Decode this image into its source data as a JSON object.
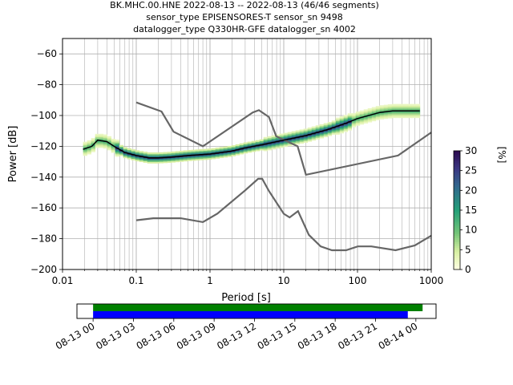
{
  "title_lines": [
    "BK.MHC.00.HNE   2022-08-13 -- 2022-08-13  (46/46 segments)",
    "sensor_type EPISENSORES-T sensor_sn 9498",
    "datalogger_type Q330HR-GFE datalogger_sn 4002"
  ],
  "chart_data": [
    {
      "type": "heatmap",
      "xlabel": "Period [s]",
      "ylabel": "Power [dB]",
      "x_scale": "log",
      "xlim": [
        0.01,
        1000
      ],
      "ylim": [
        -200,
        -50
      ],
      "grid": true,
      "x_ticks": [
        {
          "v": 0.01,
          "label": "0.01"
        },
        {
          "v": 0.1,
          "label": "0.1"
        },
        {
          "v": 1,
          "label": "1"
        },
        {
          "v": 10,
          "label": "10"
        },
        {
          "v": 100,
          "label": "100"
        },
        {
          "v": 1000,
          "label": "1000"
        }
      ],
      "y_ticks": [
        {
          "v": -60,
          "label": "−60"
        },
        {
          "v": -80,
          "label": "−80"
        },
        {
          "v": -100,
          "label": "−100"
        },
        {
          "v": -120,
          "label": "−120"
        },
        {
          "v": -140,
          "label": "−140"
        },
        {
          "v": -160,
          "label": "−160"
        },
        {
          "v": -180,
          "label": "−180"
        },
        {
          "v": -200,
          "label": "−200"
        }
      ],
      "mean_curve": [
        [
          0.019,
          -122
        ],
        [
          0.025,
          -120
        ],
        [
          0.03,
          -116
        ],
        [
          0.04,
          -117
        ],
        [
          0.05,
          -120
        ],
        [
          0.07,
          -124
        ],
        [
          0.1,
          -126
        ],
        [
          0.15,
          -127.5
        ],
        [
          0.2,
          -127.5
        ],
        [
          0.3,
          -127
        ],
        [
          0.5,
          -126
        ],
        [
          1,
          -125
        ],
        [
          2,
          -123
        ],
        [
          3,
          -121
        ],
        [
          5,
          -119
        ],
        [
          10,
          -116
        ],
        [
          20,
          -113
        ],
        [
          40,
          -109
        ],
        [
          70,
          -105
        ],
        [
          100,
          -102
        ],
        [
          200,
          -98
        ],
        [
          300,
          -97
        ],
        [
          500,
          -97
        ],
        [
          700,
          -97
        ]
      ],
      "nhnm": [
        [
          0.1,
          -91.5
        ],
        [
          0.22,
          -97.4
        ],
        [
          0.32,
          -110.5
        ],
        [
          0.8,
          -120
        ],
        [
          3.8,
          -98
        ],
        [
          4.6,
          -96.5
        ],
        [
          6.3,
          -101
        ],
        [
          7.9,
          -113.5
        ],
        [
          15.4,
          -120
        ],
        [
          20,
          -138.5
        ],
        [
          354.8,
          -126
        ],
        [
          1000,
          -111
        ]
      ],
      "nlnm": [
        [
          0.1,
          -168
        ],
        [
          0.17,
          -166.7
        ],
        [
          0.4,
          -166.7
        ],
        [
          0.8,
          -169.2
        ],
        [
          1.26,
          -163.7
        ],
        [
          3,
          -148.6
        ],
        [
          4.5,
          -141.1
        ],
        [
          5.1,
          -141.1
        ],
        [
          6.3,
          -149
        ],
        [
          10,
          -163.8
        ],
        [
          12,
          -166.2
        ],
        [
          15.6,
          -162.1
        ],
        [
          21.9,
          -177.5
        ],
        [
          31.6,
          -185
        ],
        [
          45,
          -187.5
        ],
        [
          70,
          -187.5
        ],
        [
          101,
          -185
        ],
        [
          154,
          -185
        ],
        [
          328,
          -187.5
        ],
        [
          600,
          -184.4
        ],
        [
          1000,
          -178
        ]
      ],
      "colorbar": {
        "label": "[%]",
        "range": [
          0,
          30
        ],
        "ticks": [
          0,
          5,
          10,
          15,
          20,
          25,
          30
        ]
      }
    },
    {
      "type": "timeline",
      "x_ticks": [
        "08-13 00",
        "08-13 03",
        "08-13 06",
        "08-13 09",
        "08-13 12",
        "08-13 15",
        "08-13 18",
        "08-13 21",
        "08-14 00"
      ],
      "xlim_hours": [
        -1.2,
        25.5
      ],
      "bars": [
        {
          "start": 0,
          "end": 24.5,
          "color": "#008000"
        },
        {
          "start": 0,
          "end": 23.4,
          "color": "#0000ff"
        }
      ]
    }
  ]
}
